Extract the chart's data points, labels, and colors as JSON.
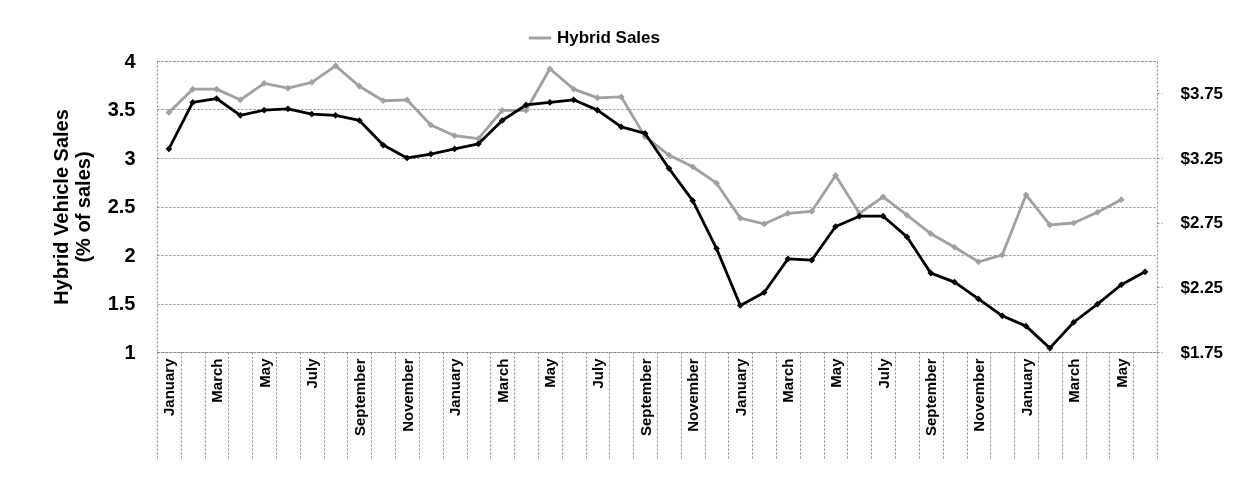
{
  "chart_data": {
    "type": "line",
    "ylabel": "Hybrid Vehicle Sales (% of sales)",
    "categories": [
      "January",
      null,
      "March",
      null,
      "May",
      null,
      "July",
      null,
      "September",
      null,
      "November",
      null,
      "January",
      null,
      "March",
      null,
      "May",
      null,
      "July",
      null,
      "September",
      null,
      "November",
      null,
      "January",
      null,
      "March",
      null,
      "May",
      null,
      "July",
      null,
      "September",
      null,
      "November",
      null,
      "January",
      null,
      "March",
      null,
      "May",
      null
    ],
    "series": [
      {
        "name": "Hybrid Sales",
        "color": "#a0a0a0",
        "values": [
          3.47,
          3.71,
          3.71,
          3.6,
          3.77,
          3.72,
          3.78,
          3.95,
          3.74,
          3.59,
          3.6,
          3.34,
          3.23,
          3.2,
          3.49,
          3.49,
          3.92,
          3.71,
          3.62,
          3.63,
          3.22,
          3.03,
          2.91,
          2.74,
          2.38,
          2.32,
          2.43,
          2.45,
          2.82,
          2.43,
          2.6,
          2.41,
          2.22,
          2.08,
          1.93,
          2.0,
          2.62,
          2.31,
          2.33,
          2.44,
          2.57,
          null
        ]
      },
      {
        "color": "#000000",
        "axis": "y2",
        "values": [
          3.32,
          3.68,
          3.71,
          3.58,
          3.62,
          3.63,
          3.59,
          3.58,
          3.54,
          3.35,
          3.25,
          3.28,
          3.32,
          3.36,
          3.54,
          3.66,
          3.68,
          3.7,
          3.62,
          3.49,
          3.44,
          3.17,
          2.92,
          2.55,
          2.11,
          2.21,
          2.47,
          2.46,
          2.72,
          2.8,
          2.8,
          2.64,
          2.36,
          2.29,
          2.16,
          2.03,
          1.95,
          1.78,
          1.98,
          2.12,
          2.27,
          2.37
        ]
      }
    ],
    "ylim": [
      1,
      4
    ],
    "yticks": [
      1,
      1.5,
      2,
      2.5,
      3,
      3.5,
      4
    ],
    "y2lim": [
      1.75,
      4
    ],
    "y2ticks": [
      {
        "value": 1.75,
        "label": "$1.75"
      },
      {
        "value": 2.25,
        "label": "$2.25"
      },
      {
        "value": 2.75,
        "label": "$2.75"
      },
      {
        "value": 3.25,
        "label": "$3.25"
      },
      {
        "value": 3.75,
        "label": "$3.75"
      }
    ],
    "grid": "y",
    "legend": "top",
    "marker": "diamond",
    "line_style": "solid"
  }
}
